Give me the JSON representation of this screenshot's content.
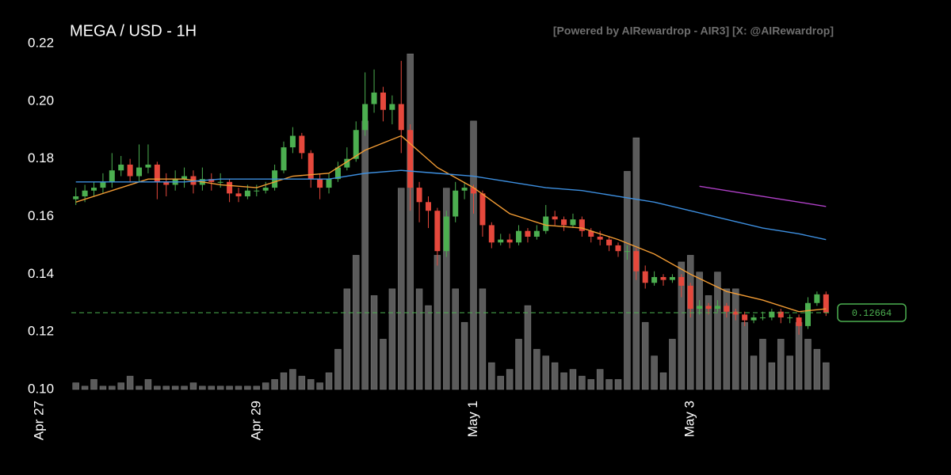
{
  "chart_data": {
    "type": "candlestick",
    "title": "MEGA / USD - 1H",
    "subtitle": "[Powered by AIRewardrop - AIR3] [X: @AIRewardrop]",
    "xlim": [
      7,
      175
    ],
    "xticks": [
      {
        "value": 0,
        "label": "Apr 27"
      },
      {
        "value": 48,
        "label": "Apr 29"
      },
      {
        "value": 96,
        "label": "May 1"
      },
      {
        "value": 144,
        "label": "May 3"
      }
    ],
    "ylim": [
      0.1,
      0.22
    ],
    "yticks": [
      {
        "value": 0.1,
        "label": "0.10"
      },
      0.12,
      0.14,
      0.16,
      0.18,
      {
        "value": 0.2,
        "label": "0.20"
      },
      0.22
    ],
    "up_color": "#4caf50",
    "down_color": "#e5483c",
    "volume_color": "#7a7a7a",
    "last_price": 0.12664,
    "last_price_color": "#4caf50",
    "x": [
      8,
      10,
      12,
      14,
      16,
      18,
      20,
      22,
      24,
      26,
      28,
      30,
      32,
      34,
      36,
      38,
      40,
      42,
      44,
      46,
      48,
      50,
      52,
      54,
      56,
      58,
      60,
      62,
      64,
      66,
      68,
      70,
      72,
      74,
      76,
      78,
      80,
      82,
      84,
      86,
      88,
      90,
      92,
      94,
      96,
      98,
      100,
      102,
      104,
      106,
      108,
      110,
      112,
      114,
      116,
      118,
      120,
      122,
      124,
      126,
      128,
      130,
      132,
      134,
      136,
      138,
      140,
      142,
      144,
      146,
      148,
      150,
      152,
      154,
      156,
      158,
      160,
      162,
      164,
      166,
      168,
      170,
      172,
      174
    ],
    "open": [
      0.166,
      0.167,
      0.169,
      0.17,
      0.172,
      0.176,
      0.178,
      0.174,
      0.177,
      0.178,
      0.172,
      0.171,
      0.173,
      0.174,
      0.171,
      0.173,
      0.172,
      0.172,
      0.168,
      0.167,
      0.169,
      0.169,
      0.17,
      0.176,
      0.184,
      0.188,
      0.182,
      0.173,
      0.17,
      0.173,
      0.177,
      0.18,
      0.19,
      0.199,
      0.203,
      0.197,
      0.199,
      0.19,
      0.17,
      0.165,
      0.162,
      0.148,
      0.16,
      0.169,
      0.17,
      0.168,
      0.157,
      0.151,
      0.152,
      0.151,
      0.155,
      0.153,
      0.155,
      0.16,
      0.159,
      0.157,
      0.159,
      0.155,
      0.153,
      0.152,
      0.15,
      0.148,
      0.148,
      0.141,
      0.137,
      0.139,
      0.138,
      0.139,
      0.136,
      0.128,
      0.129,
      0.128,
      0.129,
      0.127,
      0.126,
      0.124,
      0.125,
      0.125,
      0.127,
      0.125,
      0.125,
      0.122,
      0.13,
      0.133
    ],
    "high": [
      0.17,
      0.171,
      0.172,
      0.175,
      0.182,
      0.181,
      0.18,
      0.185,
      0.185,
      0.179,
      0.175,
      0.176,
      0.177,
      0.176,
      0.177,
      0.175,
      0.175,
      0.173,
      0.17,
      0.171,
      0.171,
      0.172,
      0.178,
      0.186,
      0.191,
      0.189,
      0.183,
      0.175,
      0.175,
      0.179,
      0.184,
      0.193,
      0.21,
      0.211,
      0.205,
      0.202,
      0.214,
      0.192,
      0.172,
      0.167,
      0.163,
      0.162,
      0.172,
      0.172,
      0.171,
      0.169,
      0.158,
      0.154,
      0.154,
      0.157,
      0.156,
      0.157,
      0.164,
      0.162,
      0.16,
      0.161,
      0.16,
      0.156,
      0.155,
      0.153,
      0.151,
      0.15,
      0.149,
      0.143,
      0.141,
      0.14,
      0.14,
      0.14,
      0.137,
      0.131,
      0.13,
      0.131,
      0.13,
      0.128,
      0.127,
      0.126,
      0.127,
      0.128,
      0.128,
      0.126,
      0.126,
      0.132,
      0.134,
      0.134
    ],
    "low": [
      0.164,
      0.165,
      0.167,
      0.168,
      0.17,
      0.174,
      0.172,
      0.172,
      0.175,
      0.166,
      0.167,
      0.169,
      0.17,
      0.168,
      0.169,
      0.169,
      0.17,
      0.165,
      0.165,
      0.166,
      0.167,
      0.168,
      0.169,
      0.175,
      0.182,
      0.18,
      0.17,
      0.166,
      0.168,
      0.172,
      0.176,
      0.179,
      0.188,
      0.196,
      0.193,
      0.192,
      0.182,
      0.162,
      0.158,
      0.156,
      0.143,
      0.146,
      0.158,
      0.166,
      0.161,
      0.153,
      0.149,
      0.15,
      0.149,
      0.15,
      0.151,
      0.152,
      0.154,
      0.157,
      0.155,
      0.156,
      0.153,
      0.151,
      0.15,
      0.148,
      0.146,
      0.145,
      0.138,
      0.135,
      0.136,
      0.136,
      0.137,
      0.132,
      0.125,
      0.126,
      0.126,
      0.127,
      0.125,
      0.124,
      0.122,
      0.123,
      0.124,
      0.124,
      0.123,
      0.123,
      0.119,
      0.121,
      0.129,
      0.1255
    ],
    "close": [
      0.167,
      0.169,
      0.17,
      0.172,
      0.176,
      0.178,
      0.174,
      0.177,
      0.178,
      0.172,
      0.171,
      0.173,
      0.174,
      0.171,
      0.173,
      0.172,
      0.172,
      0.168,
      0.167,
      0.169,
      0.169,
      0.17,
      0.176,
      0.184,
      0.188,
      0.182,
      0.173,
      0.17,
      0.173,
      0.177,
      0.18,
      0.19,
      0.199,
      0.203,
      0.197,
      0.199,
      0.19,
      0.17,
      0.165,
      0.162,
      0.148,
      0.16,
      0.169,
      0.17,
      0.168,
      0.157,
      0.151,
      0.152,
      0.151,
      0.155,
      0.153,
      0.155,
      0.16,
      0.159,
      0.157,
      0.159,
      0.155,
      0.153,
      0.152,
      0.15,
      0.148,
      0.148,
      0.141,
      0.137,
      0.139,
      0.138,
      0.139,
      0.136,
      0.128,
      0.129,
      0.128,
      0.129,
      0.127,
      0.126,
      0.124,
      0.125,
      0.125,
      0.127,
      0.125,
      0.125,
      0.122,
      0.13,
      0.133,
      0.1266
    ],
    "volume": [
      2,
      1,
      3,
      1,
      1,
      2,
      4,
      1,
      3,
      1,
      1,
      1,
      1,
      2,
      1,
      1,
      1,
      1,
      1,
      1,
      1,
      2,
      3,
      5,
      6,
      4,
      3,
      2,
      5,
      12,
      30,
      40,
      80,
      28,
      15,
      30,
      60,
      100,
      30,
      25,
      40,
      60,
      30,
      20,
      80,
      30,
      8,
      4,
      6,
      15,
      25,
      12,
      10,
      8,
      5,
      6,
      4,
      3,
      6,
      3,
      3,
      65,
      75,
      20,
      10,
      5,
      15,
      38,
      40,
      35,
      28,
      35,
      30,
      30,
      20,
      10,
      15,
      8,
      15,
      10,
      20,
      15,
      12,
      8
    ],
    "lines": [
      {
        "color": "#f39c34",
        "x": [
          8,
          16,
          24,
          32,
          40,
          48,
          56,
          64,
          72,
          80,
          88,
          96,
          104,
          112,
          120,
          128,
          136,
          144,
          152,
          160,
          168,
          174
        ],
        "values": [
          0.165,
          0.169,
          0.173,
          0.173,
          0.171,
          0.17,
          0.174,
          0.175,
          0.183,
          0.188,
          0.177,
          0.17,
          0.161,
          0.157,
          0.156,
          0.152,
          0.147,
          0.14,
          0.134,
          0.131,
          0.127,
          0.128
        ]
      },
      {
        "color": "#3d8fe0",
        "x": [
          8,
          16,
          24,
          32,
          40,
          48,
          56,
          64,
          72,
          80,
          88,
          96,
          104,
          112,
          120,
          128,
          136,
          144,
          152,
          160,
          168,
          174
        ],
        "values": [
          0.172,
          0.172,
          0.172,
          0.172,
          0.173,
          0.173,
          0.173,
          0.173,
          0.175,
          0.176,
          0.175,
          0.174,
          0.172,
          0.17,
          0.169,
          0.167,
          0.165,
          0.162,
          0.159,
          0.156,
          0.154,
          0.152
        ]
      },
      {
        "color": "#b040c8",
        "x": [
          146,
          160,
          174
        ],
        "values": [
          0.1705,
          0.167,
          0.1635
        ]
      }
    ]
  }
}
